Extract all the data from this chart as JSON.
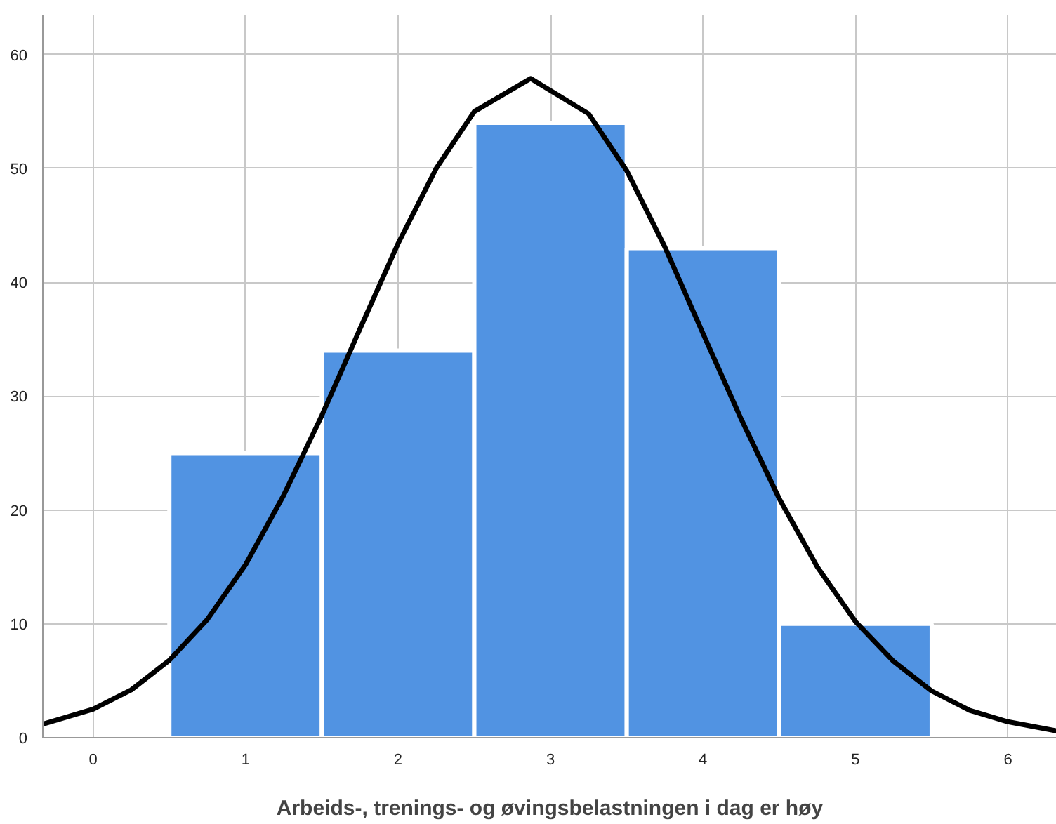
{
  "chart_data": {
    "type": "histogram",
    "xlabel": "Arbeids-, trenings- og øvingsbelastningen i dag er høy",
    "bins": [
      0.5,
      1.5,
      2.5,
      3.5,
      4.5,
      5.5
    ],
    "values": [
      25,
      34,
      54,
      43,
      10
    ],
    "color": "#5193e2",
    "series": [
      {
        "type": "line",
        "color": "#000000",
        "x": [
          -0.33,
          0,
          0.25,
          0.5,
          0.75,
          1,
          1.25,
          1.5,
          1.75,
          2,
          2.25,
          2.5,
          2.87,
          3.25,
          3.5,
          3.75,
          4,
          4.25,
          4.5,
          4.75,
          5,
          5.25,
          5.5,
          5.75,
          6,
          6.32
        ],
        "values": [
          1.2,
          2.5,
          4.2,
          6.8,
          10.4,
          15.2,
          21.3,
          28.3,
          35.9,
          43.4,
          50,
          55,
          57.9,
          54.8,
          49.8,
          43.1,
          35.5,
          28,
          21,
          15,
          10.2,
          6.7,
          4.1,
          2.4,
          1.4,
          0.6
        ]
      }
    ],
    "xlim": [
      -0.33,
      6.32
    ],
    "ylim": [
      0,
      63.5
    ],
    "xticks": [
      0,
      1,
      2,
      3,
      4,
      5,
      6
    ],
    "yticks": [
      0,
      10,
      20,
      30,
      40,
      50,
      60
    ],
    "grid": true
  }
}
